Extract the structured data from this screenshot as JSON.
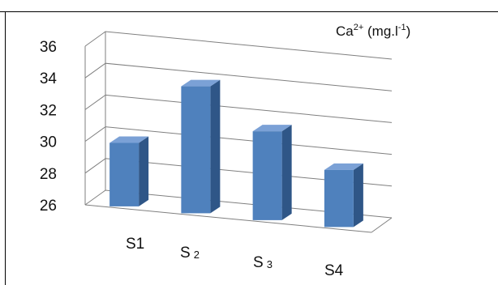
{
  "chart_data": {
    "type": "bar",
    "title": {
      "base": "Ca",
      "sup": "2+",
      "mid": " (mg.l",
      "sup2": "-1",
      "end": ")"
    },
    "categories": [
      {
        "base": "S1",
        "sub": ""
      },
      {
        "base": "S",
        "sub": "2"
      },
      {
        "base": "S",
        "sub": "3"
      },
      {
        "base": "S4",
        "sub": ""
      }
    ],
    "values": [
      30,
      34,
      31.6,
      29.6
    ],
    "ylim": [
      26,
      36
    ],
    "yticks": [
      "26",
      "28",
      "30",
      "32",
      "34",
      "36"
    ],
    "grid": true,
    "style": "3d",
    "colors": {
      "bar_front": "#4f81bd",
      "bar_side": "#2f5687",
      "bar_top": "#7ba1d6",
      "grid": "#7f7f7f"
    }
  }
}
